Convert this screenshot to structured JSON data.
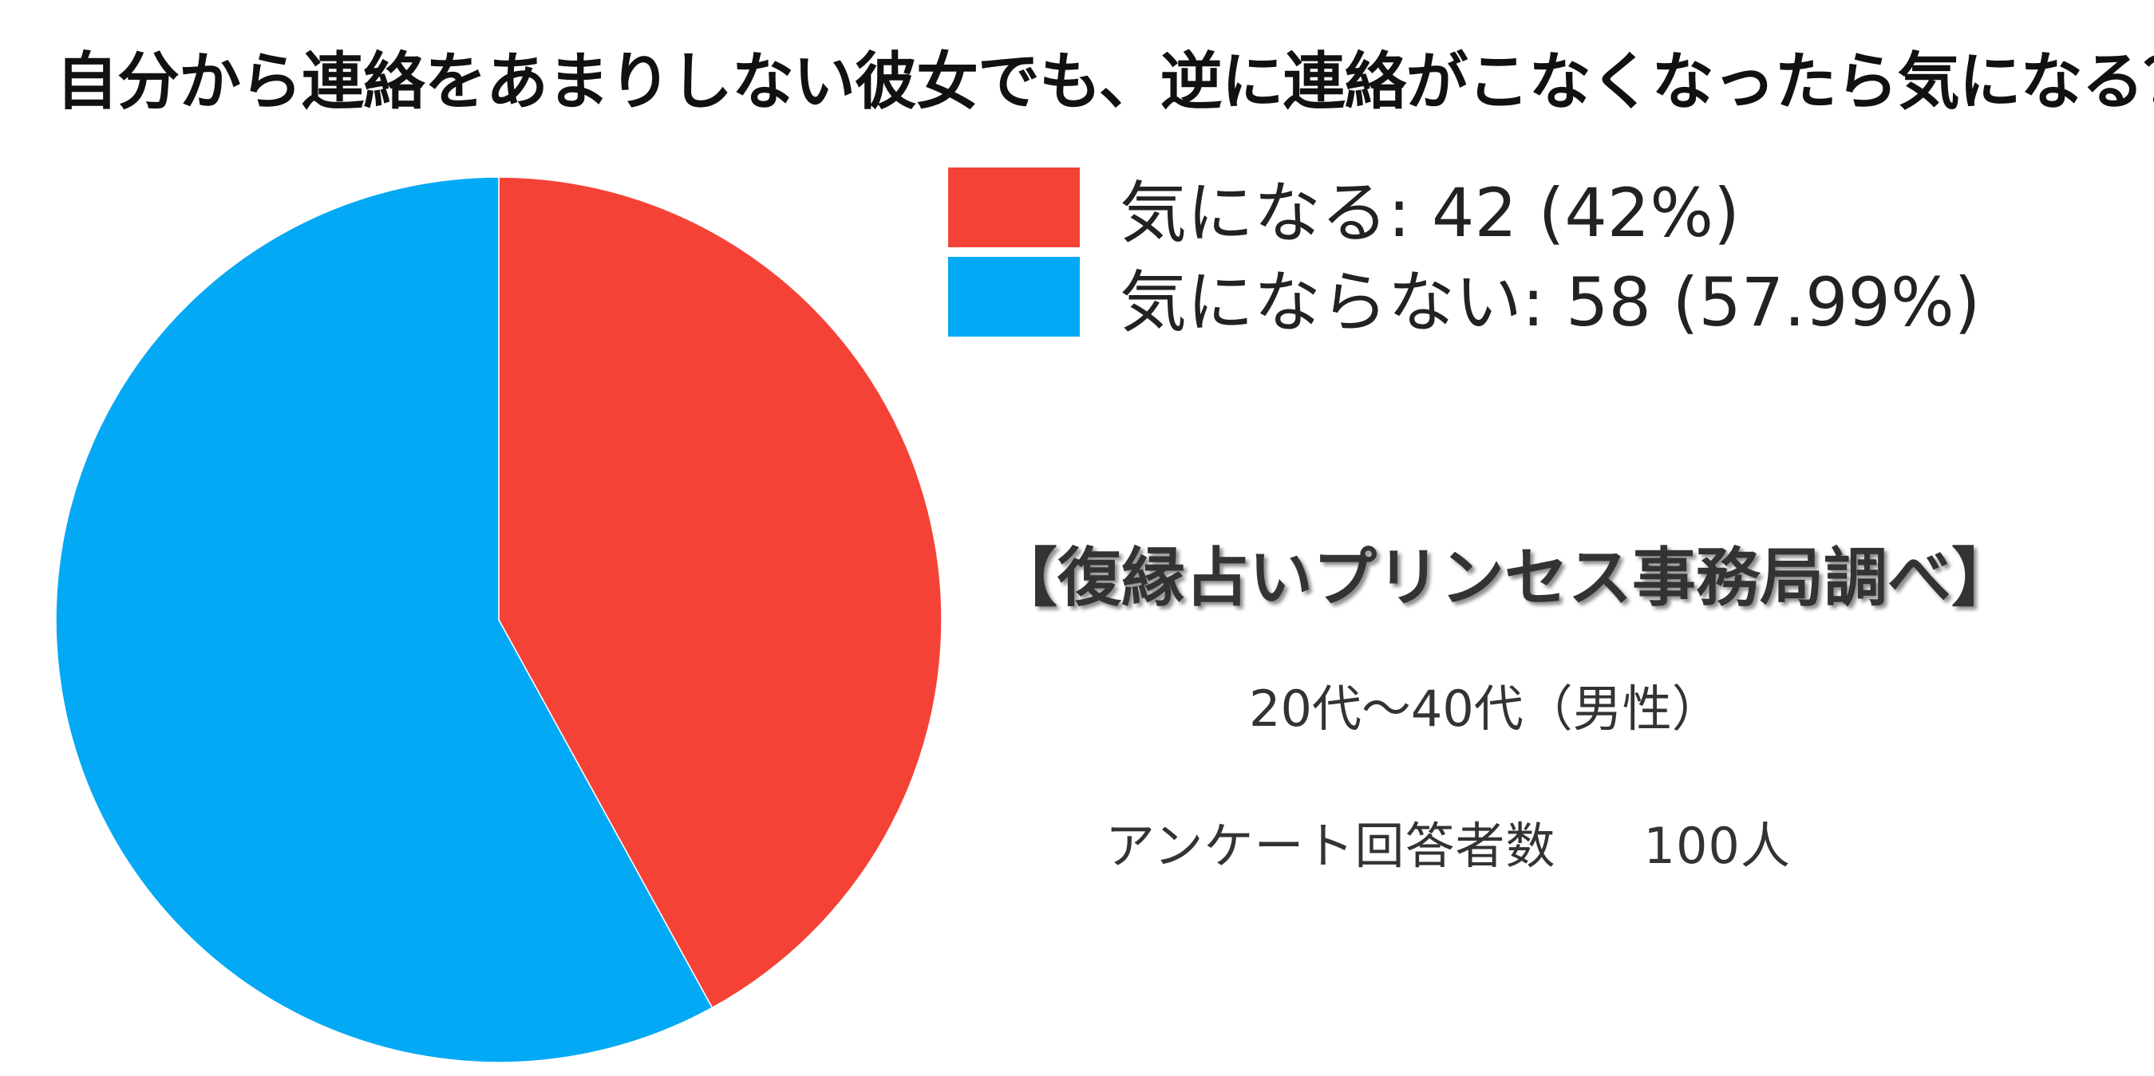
{
  "title": "自分から連絡をあまりしない彼女でも、逆に連絡がこなくなったら気になる？",
  "chart_data": {
    "type": "pie",
    "title": "自分から連絡をあまりしない彼女でも、逆に連絡がこなくなったら気になる？",
    "slices": [
      {
        "label": "気になる",
        "value": 42,
        "percent": "42%",
        "color": "#f44336"
      },
      {
        "label": "気にならない",
        "value": 58,
        "percent": "57.99%",
        "color": "#03a9f4"
      }
    ],
    "legend_placement": "top-right",
    "legend": [
      "気になる: 42 (42%)",
      "気にならない: 58 (57.99%)"
    ]
  },
  "source": "【復縁占いプリンセス事務局調べ】",
  "demographic": "20代～40代（男性）",
  "respondents": {
    "label": "アンケート回答者数",
    "count": "100人"
  }
}
